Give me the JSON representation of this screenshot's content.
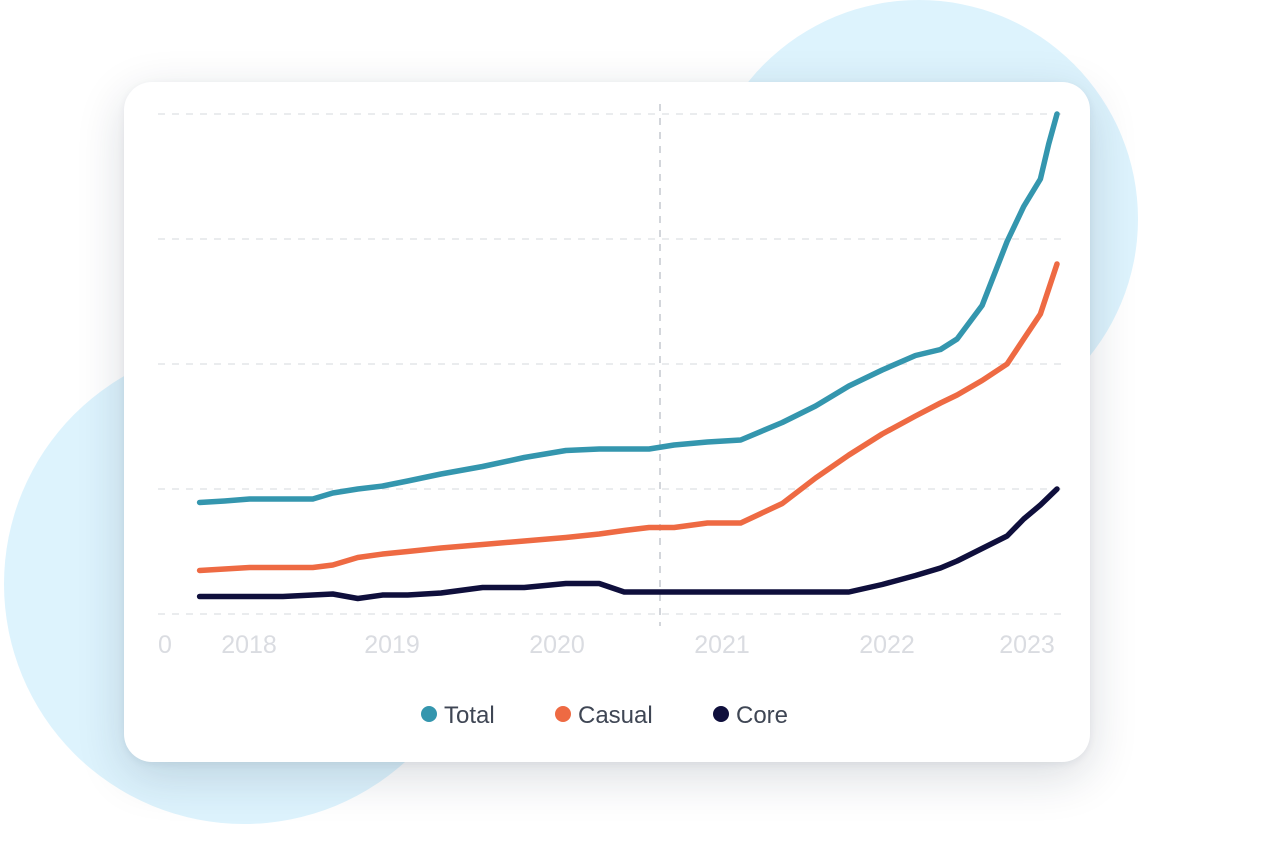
{
  "chart_data": {
    "type": "line",
    "title": "",
    "xlabel": "",
    "ylabel": "",
    "x_ticks": [
      "0",
      "2018",
      "2019",
      "2020",
      "2021",
      "2022",
      "2023"
    ],
    "x_range": [
      2017.65,
      2023.08
    ],
    "ylim": [
      0,
      100
    ],
    "grid": true,
    "legend_position": "bottom",
    "x": [
      2017.9,
      2018.05,
      2018.2,
      2018.4,
      2018.58,
      2018.7,
      2018.85,
      2019.0,
      2019.15,
      2019.35,
      2019.6,
      2019.85,
      2020.1,
      2020.3,
      2020.45,
      2020.6,
      2020.75,
      2020.95,
      2021.15,
      2021.4,
      2021.6,
      2021.8,
      2022.0,
      2022.2,
      2022.35,
      2022.45,
      2022.6,
      2022.75,
      2022.85,
      2022.95,
      2023.0,
      2023.05
    ],
    "series": [
      {
        "name": "Total",
        "color": "#3496ae",
        "values": [
          22.3,
          22.6,
          23.0,
          23.0,
          23.0,
          24.2,
          25.0,
          25.6,
          26.6,
          28.0,
          29.5,
          31.3,
          32.7,
          33.0,
          33.0,
          33.0,
          33.8,
          34.4,
          34.8,
          38.3,
          41.6,
          45.6,
          48.8,
          51.7,
          52.9,
          55.0,
          61.7,
          74.5,
          81.5,
          87.0,
          94.0,
          100.0
        ]
      },
      {
        "name": "Casual",
        "color": "#ee6a43",
        "values": [
          8.7,
          9.0,
          9.3,
          9.3,
          9.3,
          9.8,
          11.3,
          12.0,
          12.5,
          13.2,
          13.9,
          14.6,
          15.3,
          16.0,
          16.7,
          17.3,
          17.3,
          18.2,
          18.2,
          22.1,
          27.2,
          31.8,
          36.0,
          39.6,
          42.2,
          43.8,
          46.7,
          50.0,
          55.0,
          60.0,
          65.0,
          70.0
        ]
      },
      {
        "name": "Core",
        "color": "#0f0f3c",
        "values": [
          3.5,
          3.5,
          3.5,
          3.5,
          3.8,
          4.0,
          3.1,
          3.8,
          3.8,
          4.2,
          5.3,
          5.3,
          6.1,
          6.1,
          4.4,
          4.4,
          4.4,
          4.4,
          4.4,
          4.4,
          4.4,
          4.4,
          5.9,
          7.7,
          9.2,
          10.6,
          13.1,
          15.6,
          19.0,
          21.8,
          23.4,
          25.0
        ]
      }
    ]
  }
}
